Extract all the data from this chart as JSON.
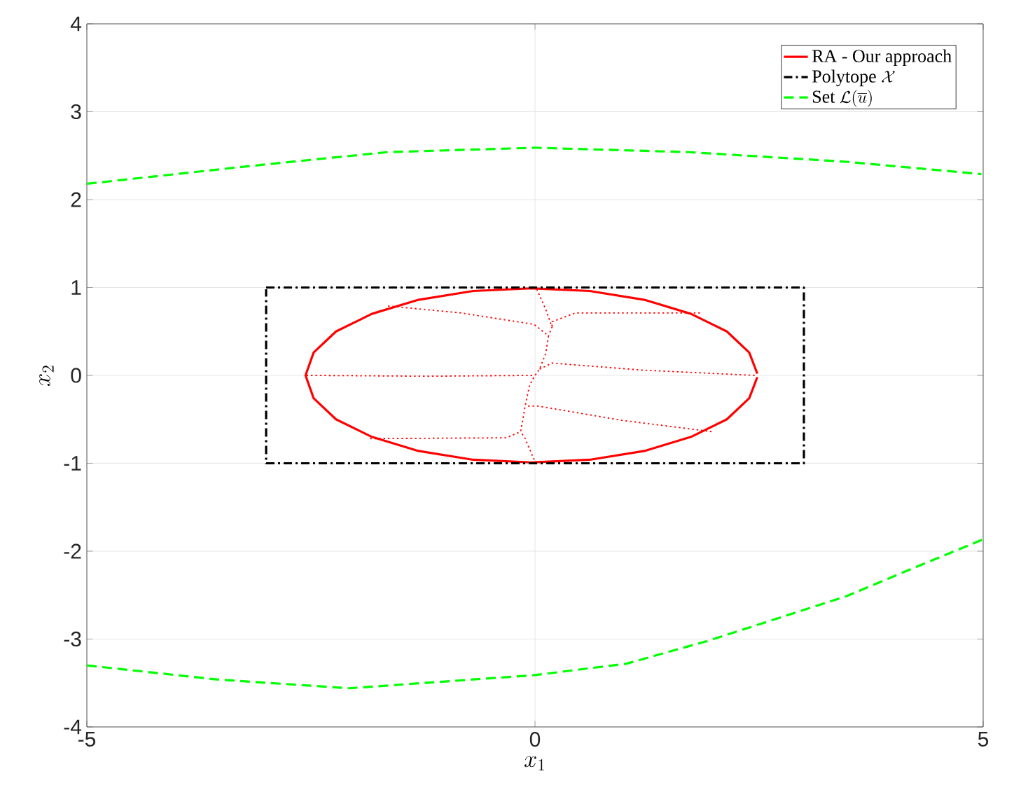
{
  "chart_data": {
    "type": "line",
    "xlabel": "x_1",
    "ylabel": "x_2",
    "xlim": [
      -5,
      5
    ],
    "ylim": [
      -4,
      4
    ],
    "xticks": [
      -5,
      0,
      5
    ],
    "yticks": [
      -4,
      -3,
      -2,
      -1,
      0,
      1,
      2,
      3,
      4
    ],
    "grid": true,
    "legend": "top right",
    "marker": "none",
    "series": [
      {
        "name": "\\textrm{RA - Our approach}",
        "color": "#ff0000",
        "line_style": "solid",
        "x": [
          2.48,
          2.39,
          2.14,
          1.74,
          1.22,
          0.61,
          -0.04,
          -0.69,
          -1.3,
          -1.82,
          -2.22,
          -2.47,
          -2.56,
          -2.47,
          -2.22,
          -1.82,
          -1.3,
          -0.69,
          -0.04,
          0.61,
          1.22,
          1.74,
          2.14,
          2.39,
          2.48
        ],
        "values": [
          0.02,
          0.26,
          0.5,
          0.7,
          0.86,
          0.96,
          0.99,
          0.96,
          0.86,
          0.7,
          0.5,
          0.26,
          0,
          -0.26,
          -0.5,
          -0.7,
          -0.86,
          -0.96,
          -0.99,
          -0.96,
          -0.86,
          -0.7,
          -0.5,
          -0.26,
          -0.02
        ]
      },
      {
        "name": "\\textrm{Polytope }\\mathcal{X}",
        "color": "#000000",
        "line_style": "dashdot",
        "x": [
          -3,
          3,
          3,
          -3,
          -3
        ],
        "values": [
          1,
          1,
          -1,
          -1,
          0.98
        ]
      },
      {
        "name": "\\textrm{Set }\\mathcal{L}(\\overline{u})",
        "color": "#00ff00",
        "line_style": "dashed",
        "x": [
          -5,
          -3.2,
          -1.65,
          0,
          1.72,
          3.48,
          4.98
        ],
        "values": [
          2.18,
          2.38,
          2.54,
          2.59,
          2.54,
          2.43,
          2.29
        ]
      },
      {
        "color": "#ff0000",
        "line_style": "dotted",
        "x": [
          -1.64,
          -0.82,
          -0.01,
          0.15,
          0.12,
          0.05,
          0,
          -0.06,
          -0.11,
          -0.16,
          -0.32,
          -1.84
        ],
        "values": [
          0.79,
          0.71,
          0.58,
          0.45,
          0.25,
          0.07,
          0,
          -0.11,
          -0.35,
          -0.64,
          -0.71,
          -0.72
        ]
      },
      {
        "color": "#ff0000",
        "line_style": "dotted",
        "x": [
          0.02,
          0.12,
          0.19,
          0.15
        ],
        "values": [
          0.98,
          0.75,
          0.55,
          0.45
        ]
      },
      {
        "color": "#ff0000",
        "line_style": "dotted",
        "x": [
          1.84,
          0.45,
          0.19,
          0.19
        ],
        "values": [
          0.71,
          0.71,
          0.61,
          0.55
        ]
      },
      {
        "color": "#ff0000",
        "line_style": "dotted",
        "x": [
          2.45,
          1.2,
          0.19,
          0.05
        ],
        "values": [
          0,
          0.06,
          0.14,
          0.07
        ]
      },
      {
        "color": "#ff0000",
        "line_style": "dotted",
        "x": [
          -2.55,
          -1.2,
          0
        ],
        "values": [
          0,
          -0.01,
          0
        ]
      },
      {
        "color": "#ff0000",
        "line_style": "dotted",
        "x": [
          1.97,
          0.96,
          0.04,
          -0.11
        ],
        "values": [
          -0.64,
          -0.51,
          -0.35,
          -0.35
        ]
      },
      {
        "color": "#ff0000",
        "line_style": "dotted",
        "x": [
          -0.01,
          -0.11,
          -0.16
        ],
        "values": [
          -0.96,
          -0.72,
          -0.64
        ]
      },
      {
        "color": "#00ff00",
        "line_style": "dashed",
        "x": [
          -5,
          -3.55,
          -2.07,
          0,
          1.02,
          1.93,
          3.48,
          4.18,
          4.99
        ],
        "values": [
          -3.3,
          -3.46,
          -3.56,
          -3.41,
          -3.28,
          -3.02,
          -2.51,
          -2.21,
          -1.87
        ]
      }
    ]
  }
}
